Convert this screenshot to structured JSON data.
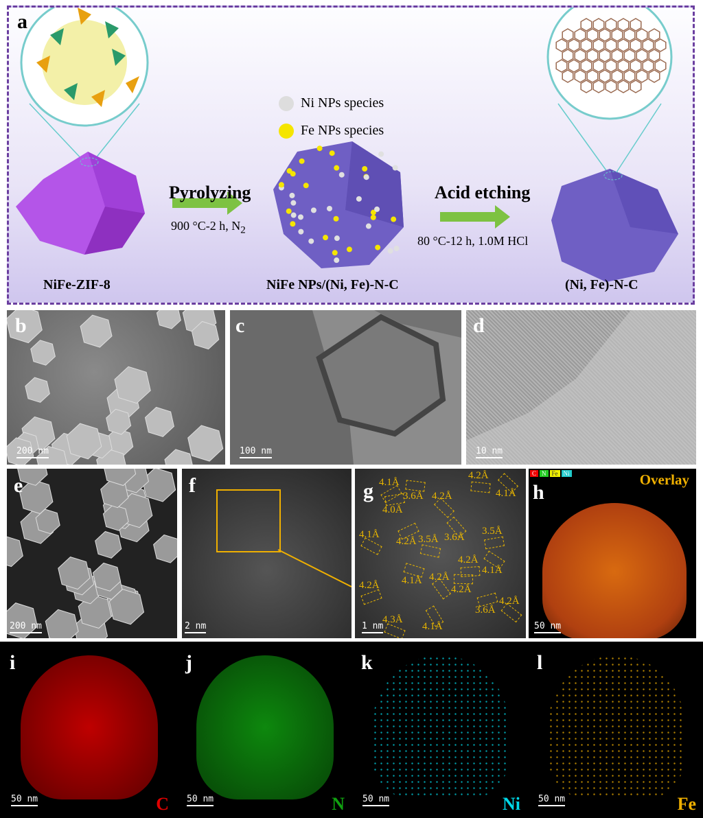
{
  "panel_a": {
    "label": "a",
    "legend": [
      {
        "text": "Ni NPs species",
        "color": "#e0e0e0"
      },
      {
        "text": "Fe NPs species",
        "color": "#f5e500"
      }
    ],
    "step1": {
      "title": "Pyrolyzing",
      "condition": "900 °C-2 h, N",
      "sub": "2"
    },
    "step2": {
      "title": "Acid etching",
      "condition": "80 °C-12 h, 1.0M HCl"
    },
    "materials": [
      "NiFe-ZIF-8",
      "NiFe NPs/(Ni, Fe)-N-C",
      "(Ni, Fe)-N-C"
    ],
    "colors": {
      "zif": "#b455e8",
      "carbon": "#6f5fc4",
      "arrow": "#7dc242",
      "border": "#6b3fa0"
    }
  },
  "panels": {
    "b": {
      "label": "b",
      "scale": "200 nm"
    },
    "c": {
      "label": "c",
      "scale": "100 nm"
    },
    "d": {
      "label": "d",
      "scale": "10 nm"
    },
    "e": {
      "label": "e",
      "scale": "200 nm"
    },
    "f": {
      "label": "f",
      "scale": "2 nm"
    },
    "g": {
      "label": "g",
      "scale": "1 nm",
      "spacings": [
        "4.1Å",
        "3.6Å",
        "4.2Å",
        "4.0Å",
        "4.1Å",
        "4.2Å",
        "3.5Å",
        "3.6Å",
        "4.2Å",
        "4.1Å",
        "4.2Å",
        "4.1Å",
        "4.2Å",
        "4.2Å",
        "4.2Å",
        "3.6Å",
        "4.3Å",
        "4.1Å",
        "4.2Å",
        "4.1Å",
        "3.5Å"
      ]
    },
    "h": {
      "label": "h",
      "scale": "50 nm",
      "title": "Overlay",
      "chips": [
        "C",
        "N",
        "Fe",
        "Ni"
      ]
    },
    "i": {
      "label": "i",
      "scale": "50 nm",
      "element": "C",
      "color": "#e00000"
    },
    "j": {
      "label": "j",
      "scale": "50 nm",
      "element": "N",
      "color": "#10a010"
    },
    "k": {
      "label": "k",
      "scale": "50 nm",
      "element": "Ni",
      "color": "#00d8e8"
    },
    "l": {
      "label": "l",
      "scale": "50 nm",
      "element": "Fe",
      "color": "#f0b000"
    }
  }
}
